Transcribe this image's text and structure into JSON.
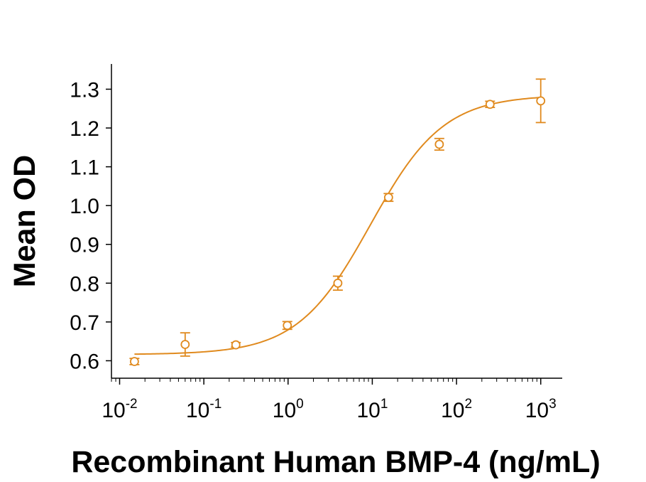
{
  "chart_data": {
    "type": "scatter",
    "xlabel": "Recombinant Human BMP-4 (ng/mL)",
    "ylabel": "Mean OD",
    "x_scale": "log",
    "xlim": [
      0.008,
      1800
    ],
    "ylim": [
      0.555,
      1.365
    ],
    "x_ticks": [
      {
        "value": 0.01,
        "base": "10",
        "exp": "-2"
      },
      {
        "value": 0.1,
        "base": "10",
        "exp": "-1"
      },
      {
        "value": 1,
        "base": "10",
        "exp": "0"
      },
      {
        "value": 10,
        "base": "10",
        "exp": "1"
      },
      {
        "value": 100,
        "base": "10",
        "exp": "2"
      },
      {
        "value": 1000,
        "base": "10",
        "exp": "3"
      }
    ],
    "y_ticks": [
      "0.6",
      "0.7",
      "0.8",
      "0.9",
      "1.0",
      "1.1",
      "1.2",
      "1.3"
    ],
    "grid": false,
    "color": "#E08A1E",
    "points": [
      {
        "x": 0.015,
        "y": 0.598,
        "err": 0.008
      },
      {
        "x": 0.06,
        "y": 0.642,
        "err": 0.03
      },
      {
        "x": 0.24,
        "y": 0.641,
        "err": 0.006
      },
      {
        "x": 0.98,
        "y": 0.691,
        "err": 0.01
      },
      {
        "x": 3.9,
        "y": 0.8,
        "err": 0.018
      },
      {
        "x": 15.6,
        "y": 1.021,
        "err": 0.01
      },
      {
        "x": 62.5,
        "y": 1.158,
        "err": 0.015
      },
      {
        "x": 250,
        "y": 1.261,
        "err": 0.008
      },
      {
        "x": 1000,
        "y": 1.27,
        "err": 0.056
      }
    ],
    "fit_curve": {
      "bottom": 0.616,
      "top": 1.285,
      "ec50": 9.5,
      "hill": 1.0,
      "x_range": [
        0.015,
        1000
      ]
    }
  }
}
